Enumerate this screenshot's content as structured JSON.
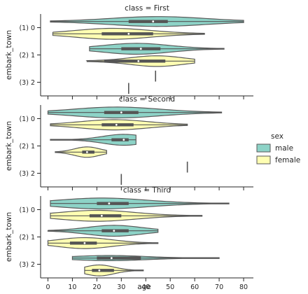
{
  "colors": {
    "male": "#8dd3c7",
    "female": "#ffffb3",
    "edge": "#5a5a5a",
    "box": "#555555"
  },
  "chart_data": {
    "type": "violin",
    "orientation": "horizontal",
    "x_label": "age",
    "y_label": "embark_town",
    "x_ticks": [
      0,
      10,
      20,
      30,
      40,
      50,
      60,
      70,
      80
    ],
    "xlim": [
      -3,
      84
    ],
    "y_categories": [
      "(1) 0",
      "(2) 1",
      "(3) 2"
    ],
    "legend": {
      "title": "sex",
      "entries": [
        "male",
        "female"
      ],
      "position": "right"
    },
    "panels": [
      {
        "title": "class = First",
        "series": [
          {
            "category": "(1) 0",
            "sex": "male",
            "min": 1,
            "q1": 33,
            "median": 43,
            "q3": 49,
            "max": 80,
            "peak": 45,
            "width": 0.72
          },
          {
            "category": "(1) 0",
            "sex": "female",
            "min": 2,
            "q1": 22,
            "median": 33,
            "q3": 43,
            "max": 64,
            "peak": 26,
            "width": 0.8
          },
          {
            "category": "(2) 1",
            "sex": "male",
            "min": 17,
            "q1": 30,
            "median": 38,
            "q3": 46,
            "max": 72,
            "peak": 36,
            "width": 0.8
          },
          {
            "category": "(2) 1",
            "sex": "female",
            "min": 16,
            "q1": 23,
            "median": 37,
            "q3": 48,
            "max": 60,
            "peak": 45,
            "width": 0.78
          },
          {
            "category": "(3) 2",
            "sex": "male",
            "min": 44,
            "q1": 44,
            "median": 44,
            "q3": 44,
            "max": 44,
            "peak": 44,
            "width": 0.0
          },
          {
            "category": "(3) 2",
            "sex": "female",
            "min": 33,
            "q1": 33,
            "median": 33,
            "q3": 33,
            "max": 33,
            "peak": 33,
            "width": 0.0
          }
        ]
      },
      {
        "title": "class = Second",
        "series": [
          {
            "category": "(1) 0",
            "sex": "male",
            "min": 0,
            "q1": 23,
            "median": 30,
            "q3": 37,
            "max": 71,
            "peak": 28,
            "width": 0.8
          },
          {
            "category": "(1) 0",
            "sex": "female",
            "min": 1,
            "q1": 22,
            "median": 28,
            "q3": 35,
            "max": 57,
            "peak": 27,
            "width": 0.75
          },
          {
            "category": "(2) 1",
            "sex": "male",
            "min": 1,
            "q1": 26,
            "median": 31,
            "q3": 33,
            "max": 36,
            "peak": 31,
            "width": 0.8
          },
          {
            "category": "(2) 1",
            "sex": "female",
            "min": 3,
            "q1": 14,
            "median": 16,
            "q3": 19,
            "max": 24,
            "peak": 16,
            "width": 0.76
          },
          {
            "category": "(3) 2",
            "sex": "male",
            "min": 57,
            "q1": 57,
            "median": 57,
            "q3": 57,
            "max": 57,
            "peak": 57,
            "width": 0.0
          },
          {
            "category": "(3) 2",
            "sex": "female",
            "min": 30,
            "q1": 30,
            "median": 30,
            "q3": 30,
            "max": 30,
            "peak": 30,
            "width": 0.0
          }
        ]
      },
      {
        "title": "class = Third",
        "series": [
          {
            "category": "(1) 0",
            "sex": "male",
            "min": 1,
            "q1": 20,
            "median": 25,
            "q3": 33,
            "max": 74,
            "peak": 22,
            "width": 0.8
          },
          {
            "category": "(1) 0",
            "sex": "female",
            "min": 1,
            "q1": 17,
            "median": 22,
            "q3": 30,
            "max": 63,
            "peak": 20,
            "width": 0.8
          },
          {
            "category": "(2) 1",
            "sex": "male",
            "min": 0,
            "q1": 22,
            "median": 27,
            "q3": 33,
            "max": 45,
            "peak": 27,
            "width": 0.8
          },
          {
            "category": "(2) 1",
            "sex": "female",
            "min": 0,
            "q1": 9,
            "median": 15,
            "q3": 20,
            "max": 45,
            "peak": 15,
            "width": 0.8
          },
          {
            "category": "(3) 2",
            "sex": "male",
            "min": 10,
            "q1": 20,
            "median": 26,
            "q3": 38,
            "max": 70,
            "peak": 25,
            "width": 0.38
          },
          {
            "category": "(3) 2",
            "sex": "female",
            "min": 15,
            "q1": 18,
            "median": 21,
            "q3": 27,
            "max": 39,
            "peak": 21,
            "width": 0.8
          }
        ]
      }
    ]
  }
}
